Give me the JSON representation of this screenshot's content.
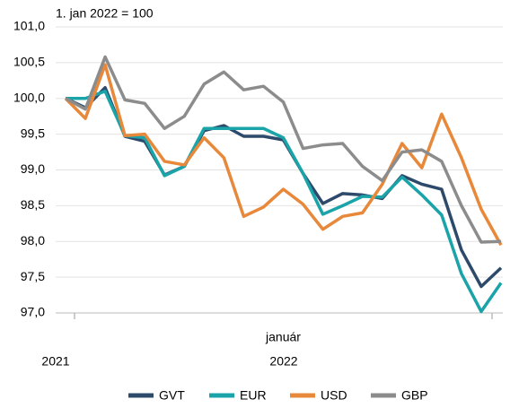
{
  "chart_data": {
    "type": "line",
    "annotation": "1. jan 2022 = 100",
    "categories": [
      null,
      null,
      null,
      null,
      null,
      null,
      null,
      null,
      null,
      null,
      null,
      "január",
      null,
      null,
      null,
      null,
      null,
      null,
      null,
      null,
      null,
      null,
      null
    ],
    "years": [
      "2021",
      "2022"
    ],
    "ylim": [
      97.0,
      101.0
    ],
    "yticks": [
      {
        "value": 97.0,
        "label": "97,0"
      },
      {
        "value": 97.5,
        "label": "97,5"
      },
      {
        "value": 98.0,
        "label": "98,0"
      },
      {
        "value": 98.5,
        "label": "98,5"
      },
      {
        "value": 99.0,
        "label": "99,0"
      },
      {
        "value": 99.5,
        "label": "99,5"
      },
      {
        "value": 100.0,
        "label": "100,0"
      },
      {
        "value": 100.5,
        "label": "100,5"
      },
      {
        "value": 101.0,
        "label": "101,0"
      }
    ],
    "grid": true,
    "legend": "bottom",
    "series": [
      {
        "name": "GVT",
        "color": "#2e4a6b",
        "values": [
          100.0,
          99.87,
          100.15,
          99.47,
          99.4,
          98.93,
          99.05,
          99.55,
          99.62,
          99.47,
          99.47,
          99.42,
          98.95,
          98.53,
          98.67,
          98.65,
          98.6,
          98.92,
          98.8,
          98.73,
          97.88,
          97.37,
          97.63
        ]
      },
      {
        "name": "EUR",
        "color": "#1aa3a8",
        "values": [
          100.0,
          100.0,
          100.1,
          99.48,
          99.45,
          98.92,
          99.05,
          99.58,
          99.58,
          99.58,
          99.58,
          99.45,
          98.95,
          98.38,
          98.5,
          98.63,
          98.62,
          98.9,
          98.65,
          98.37,
          97.55,
          97.02,
          97.42
        ]
      },
      {
        "name": "USD",
        "color": "#e8883a",
        "values": [
          100.0,
          99.72,
          100.47,
          99.48,
          99.5,
          99.12,
          99.07,
          99.45,
          99.17,
          98.35,
          98.48,
          98.73,
          98.52,
          98.17,
          98.35,
          98.4,
          98.8,
          99.37,
          99.03,
          99.78,
          99.17,
          98.45,
          97.95
        ]
      },
      {
        "name": "GBP",
        "color": "#8c8c8c",
        "values": [
          100.0,
          99.85,
          100.58,
          99.98,
          99.93,
          99.58,
          99.75,
          100.2,
          100.37,
          100.12,
          100.17,
          99.95,
          99.3,
          99.35,
          99.37,
          99.05,
          98.85,
          99.25,
          99.28,
          99.12,
          98.5,
          97.99,
          98.0
        ]
      }
    ]
  }
}
